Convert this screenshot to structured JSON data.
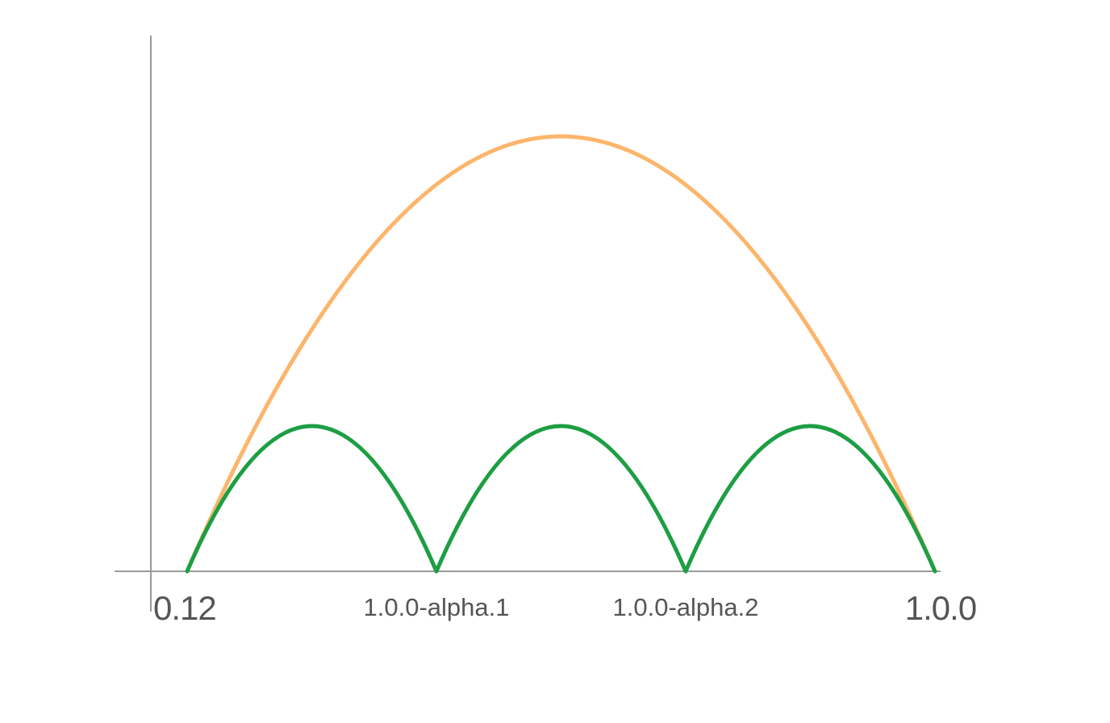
{
  "colors": {
    "big_arc": "#FDB56B",
    "small_arcs": "#1D9E43",
    "axis": "#9A9A9A",
    "label_text": "#555555"
  },
  "releases": [
    {
      "label": "0.12",
      "emphasis": "major"
    },
    {
      "label": "1.0.0-alpha.1",
      "emphasis": "minor"
    },
    {
      "label": "1.0.0-alpha.2",
      "emphasis": "minor"
    },
    {
      "label": "1.0.0",
      "emphasis": "major"
    }
  ],
  "arcs": {
    "single_jump": {
      "from": "0.12",
      "to": "1.0.0"
    },
    "incremental_jumps": [
      {
        "from": "0.12",
        "to": "1.0.0-alpha.1"
      },
      {
        "from": "1.0.0-alpha.1",
        "to": "1.0.0-alpha.2"
      },
      {
        "from": "1.0.0-alpha.2",
        "to": "1.0.0"
      }
    ]
  }
}
